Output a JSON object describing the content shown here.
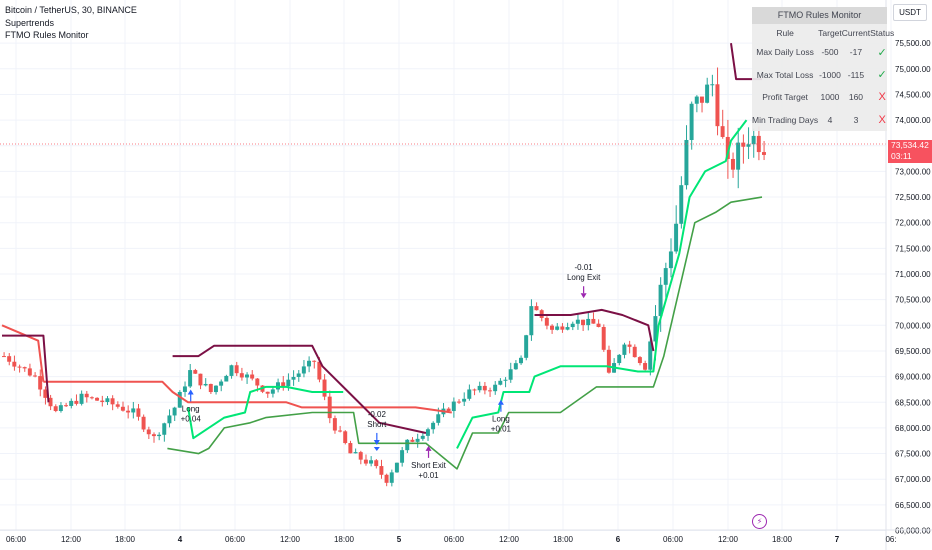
{
  "legend": {
    "symbol": "Bitcoin / TetherUS, 30, BINANCE",
    "indicator1": "Supertrends",
    "indicator2": "FTMO Rules Monitor"
  },
  "currency_button": "USDT",
  "ftmo_table": {
    "title": "FTMO Rules Monitor",
    "headers": [
      "Rule",
      "Target",
      "Current",
      "Status"
    ],
    "rows": [
      {
        "rule": "Max Daily Loss",
        "target": "-500",
        "current": "-17",
        "status": "✓",
        "status_kind": "ok"
      },
      {
        "rule": "Max Total Loss",
        "target": "-1000",
        "current": "-115",
        "status": "✓",
        "status_kind": "ok"
      },
      {
        "rule": "Profit Target",
        "target": "1000",
        "current": "160",
        "status": "X",
        "status_kind": "bad"
      },
      {
        "rule": "Min Trading Days",
        "target": "4",
        "current": "3",
        "status": "X",
        "status_kind": "bad"
      }
    ]
  },
  "last_price": {
    "price": "73,534.42",
    "countdown": "03:11"
  },
  "colors": {
    "up_candle": "#26a69a",
    "down_candle": "#ef5350",
    "st_fast_up": "#00e676",
    "st_fast_down": "#ef5350",
    "st_slow_up": "#43a047",
    "st_slow_down": "#7b1045",
    "signal": "#9c27b0"
  },
  "chart_data": {
    "type": "candlestick",
    "symbol": "BTCUSDT",
    "interval": "30",
    "ylim": [
      66000,
      76000
    ],
    "y_ticks": [
      "66,000.00",
      "66,500.00",
      "67,000.00",
      "67,500.00",
      "68,000.00",
      "68,500.00",
      "69,000.00",
      "69,500.00",
      "70,000.00",
      "70,500.00",
      "71,000.00",
      "71,500.00",
      "72,000.00",
      "72,500.00",
      "73,000.00",
      "73,500.00",
      "74,000.00",
      "74,500.00",
      "75,000.00",
      "75,500.00"
    ],
    "x_ticks": [
      "06:00",
      "12:00",
      "18:00",
      "4",
      "06:00",
      "12:00",
      "18:00",
      "5",
      "06:00",
      "12:00",
      "18:00",
      "6",
      "06:00",
      "12:00",
      "18:00",
      "7",
      "06:"
    ],
    "close_path": [
      [
        0,
        69400
      ],
      [
        6,
        69000
      ],
      [
        10,
        68300
      ],
      [
        15,
        68600
      ],
      [
        20,
        68500
      ],
      [
        25,
        68300
      ],
      [
        29,
        67800
      ],
      [
        33,
        68400
      ],
      [
        36,
        69100
      ],
      [
        40,
        68700
      ],
      [
        44,
        69200
      ],
      [
        47,
        69000
      ],
      [
        51,
        68700
      ],
      [
        56,
        69000
      ],
      [
        60,
        69300
      ],
      [
        63,
        68200
      ],
      [
        67,
        67500
      ],
      [
        71,
        67300
      ],
      [
        74,
        67000
      ],
      [
        78,
        67700
      ],
      [
        82,
        68000
      ],
      [
        86,
        68400
      ],
      [
        90,
        68700
      ],
      [
        95,
        68800
      ],
      [
        100,
        69300
      ],
      [
        102,
        70400
      ],
      [
        106,
        69900
      ],
      [
        110,
        70100
      ],
      [
        115,
        70000
      ],
      [
        117,
        69000
      ],
      [
        120,
        69700
      ],
      [
        124,
        69200
      ],
      [
        127,
        70700
      ],
      [
        130,
        72000
      ],
      [
        133,
        74200
      ],
      [
        137,
        74700
      ],
      [
        140,
        73000
      ],
      [
        144,
        73700
      ],
      [
        147,
        73534
      ]
    ],
    "supertrend_fast": [
      [
        0,
        70000
      ],
      [
        7,
        69700
      ],
      [
        8,
        68900
      ],
      [
        31,
        68900
      ],
      [
        36,
        68400
      ],
      [
        37,
        67800
      ],
      [
        43,
        68200
      ],
      [
        47,
        68300
      ],
      [
        48,
        68700
      ],
      [
        51,
        68800
      ],
      [
        55,
        68800
      ],
      [
        60,
        68700
      ],
      [
        66,
        68700
      ],
      [
        67,
        68400
      ],
      [
        85,
        68400
      ],
      [
        87,
        68200
      ],
      [
        88,
        67600
      ],
      [
        91,
        68200
      ],
      [
        96,
        68300
      ],
      [
        97,
        68700
      ],
      [
        102,
        68700
      ],
      [
        103,
        69000
      ],
      [
        108,
        69200
      ],
      [
        117,
        69200
      ],
      [
        123,
        69100
      ],
      [
        126,
        69100
      ],
      [
        127,
        70000
      ],
      [
        131,
        71400
      ],
      [
        133,
        72500
      ],
      [
        136,
        73000
      ],
      [
        140,
        73200
      ],
      [
        141,
        73600
      ],
      [
        144,
        74000
      ]
    ],
    "supertrend_slow": [
      [
        0,
        69800
      ],
      [
        8,
        69800
      ],
      [
        9,
        68500
      ],
      [
        31,
        68500
      ],
      [
        32,
        67600
      ],
      [
        38,
        67500
      ],
      [
        40,
        67600
      ],
      [
        43,
        68000
      ],
      [
        48,
        68100
      ],
      [
        51,
        68200
      ],
      [
        60,
        68300
      ],
      [
        68,
        68300
      ],
      [
        69,
        67700
      ],
      [
        82,
        67700
      ],
      [
        88,
        67200
      ],
      [
        91,
        67900
      ],
      [
        96,
        67900
      ],
      [
        98,
        68300
      ],
      [
        103,
        68300
      ],
      [
        108,
        68300
      ],
      [
        115,
        68800
      ],
      [
        123,
        68800
      ],
      [
        126,
        68800
      ],
      [
        128,
        69400
      ],
      [
        134,
        72000
      ],
      [
        138,
        72200
      ],
      [
        141,
        72400
      ],
      [
        147,
        72500
      ]
    ],
    "supertrend_slow_down_segments": [
      [
        [
          33,
          69400
        ],
        [
          38,
          69400
        ],
        [
          41,
          69600
        ],
        [
          60,
          69600
        ],
        [
          62,
          69200
        ],
        [
          67,
          68700
        ],
        [
          73,
          68100
        ],
        [
          82,
          67900
        ]
      ],
      [
        [
          103,
          70200
        ],
        [
          110,
          70200
        ],
        [
          116,
          70300
        ],
        [
          120,
          70200
        ],
        [
          125,
          70000
        ],
        [
          126,
          69500
        ]
      ],
      [
        [
          141,
          75500
        ],
        [
          142,
          74800
        ],
        [
          147,
          74800
        ]
      ]
    ],
    "signals": [
      {
        "type": "entry",
        "direction": "long",
        "label": "Long",
        "pnl": "+0.04",
        "bar": 36
      },
      {
        "type": "entry",
        "direction": "short",
        "label": "Short",
        "pnl": "-0.02",
        "bar": 72
      },
      {
        "type": "exit",
        "direction": "short",
        "label": "Short Exit",
        "pnl": "+0.01",
        "bar": 82
      },
      {
        "type": "entry",
        "direction": "long",
        "label": "Long",
        "pnl": "+0.01",
        "bar": 96
      },
      {
        "type": "exit",
        "direction": "long",
        "label": "Long Exit",
        "pnl": "-0.01",
        "bar": 112
      }
    ]
  }
}
